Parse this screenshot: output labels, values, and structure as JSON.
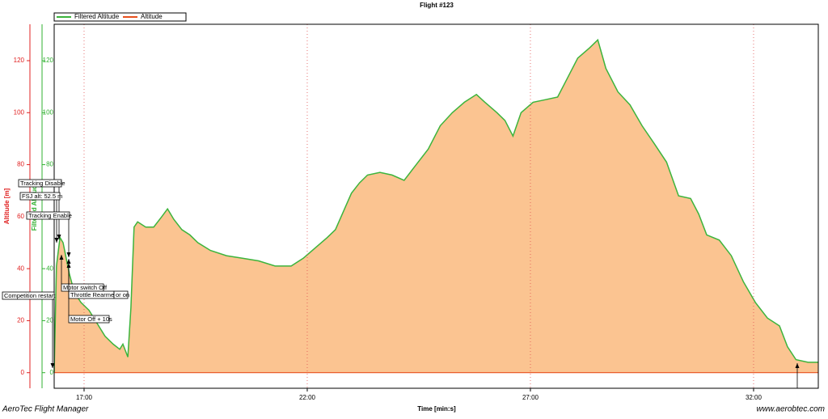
{
  "chart_data": {
    "type": "area",
    "title": "Flight #123",
    "xlabel": "Time [min:s]",
    "ylabel": "Altitude [m]",
    "y2label": "Filtered Altitude",
    "footer_left": "AeroTec Flight Manager",
    "footer_right": "www.aerobtec.com",
    "xlim": [
      16.33,
      33.45
    ],
    "ylim": [
      -6,
      134
    ],
    "xticks": [
      {
        "value": 17,
        "label": "17:00"
      },
      {
        "value": 22,
        "label": "22:00"
      },
      {
        "value": 27,
        "label": "27:00"
      },
      {
        "value": 32,
        "label": "32:00"
      }
    ],
    "yticks": [
      0,
      20,
      40,
      60,
      80,
      100,
      120
    ],
    "grid": true,
    "area_color": "#fbc491",
    "series": [
      {
        "name": "Filtered Altitude",
        "color": "#3cb43c",
        "x": [
          16.33,
          16.38,
          16.46,
          16.53,
          16.6,
          16.67,
          16.78,
          16.93,
          17.11,
          17.29,
          17.47,
          17.65,
          17.8,
          17.87,
          17.98,
          18.05,
          18.12,
          18.2,
          18.38,
          18.56,
          18.74,
          18.87,
          19.01,
          19.19,
          19.37,
          19.55,
          19.83,
          20.19,
          20.55,
          20.91,
          21.28,
          21.64,
          21.91,
          22.18,
          22.45,
          22.63,
          22.81,
          22.99,
          23.17,
          23.35,
          23.63,
          23.9,
          24.17,
          24.44,
          24.71,
          24.98,
          25.25,
          25.52,
          25.79,
          25.98,
          26.25,
          26.43,
          26.61,
          26.79,
          27.06,
          27.34,
          27.61,
          27.79,
          28.06,
          28.33,
          28.51,
          28.69,
          28.96,
          29.23,
          29.5,
          29.78,
          30.05,
          30.32,
          30.59,
          30.77,
          30.95,
          31.23,
          31.5,
          31.77,
          32.04,
          32.31,
          32.58,
          32.76,
          32.95,
          33.22,
          33.45
        ],
        "values": [
          0,
          41,
          52,
          50,
          44,
          38,
          31,
          27,
          24,
          19,
          14,
          11,
          9,
          11,
          6,
          25,
          56,
          58,
          56,
          56,
          60,
          63,
          59,
          55,
          53,
          50,
          47,
          45,
          44,
          43,
          41,
          41,
          44,
          48,
          52,
          55,
          62,
          69,
          73,
          76,
          77,
          76,
          74,
          80,
          86,
          95,
          100,
          104,
          107,
          104,
          100,
          97,
          91,
          100,
          104,
          105,
          106,
          112,
          121,
          125,
          128,
          117,
          108,
          103,
          95,
          88,
          81,
          68,
          67,
          61,
          53,
          51,
          45,
          35,
          27,
          21,
          18,
          10,
          5,
          4,
          4
        ]
      },
      {
        "name": "Altitude",
        "color": "#e8501e",
        "x": [
          16.33,
          33.45
        ],
        "values": [
          0,
          0
        ]
      }
    ],
    "annotations": [
      "Tracking Disable",
      "FSJ alt: 52.5 m",
      "Tracking Enable",
      "Competition restart",
      "Motor switch Off",
      "Throttle Rearmed",
      "or on",
      "Motor Off + 10s"
    ]
  }
}
